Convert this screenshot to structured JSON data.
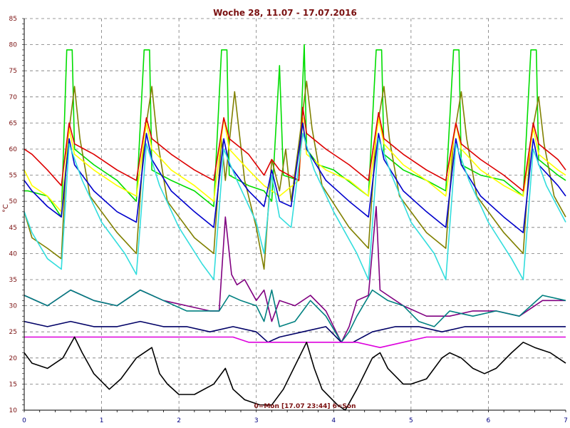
{
  "chart_data": {
    "type": "line",
    "title": "Woche 28, 11.07 - 17.07.2016",
    "ylabel": "°C",
    "footer": "0=Mon [17.07 23:44] 6=Son",
    "xlim": [
      0,
      7
    ],
    "ylim": [
      10,
      85
    ],
    "x_ticks": [
      "0",
      "1",
      "2",
      "3",
      "4",
      "5",
      "6",
      "7"
    ],
    "y_ticks": [
      "10",
      "15",
      "20",
      "25",
      "30",
      "35",
      "40",
      "45",
      "50",
      "55",
      "60",
      "65",
      "70",
      "75",
      "80",
      "85"
    ],
    "grid": true,
    "series": [
      {
        "color": "#00dd00",
        "x": [
          0,
          0.05,
          0.3,
          0.48,
          0.55,
          0.62,
          0.65,
          0.9,
          1.2,
          1.45,
          1.55,
          1.62,
          1.65,
          1.9,
          2.2,
          2.45,
          2.55,
          2.62,
          2.65,
          2.9,
          3.1,
          3.2,
          3.3,
          3.35,
          3.55,
          3.62,
          3.65,
          3.8,
          4.0,
          4.45,
          4.55,
          4.62,
          4.65,
          4.9,
          5.2,
          5.45,
          5.55,
          5.62,
          5.65,
          5.9,
          6.2,
          6.45,
          6.55,
          6.62,
          6.65,
          6.9,
          7.0
        ],
        "y": [
          52,
          52,
          51,
          47,
          79,
          79,
          60,
          57,
          54,
          50,
          79,
          79,
          56,
          54,
          52,
          49,
          79,
          79,
          55,
          53,
          52,
          50,
          76,
          55,
          54,
          80,
          60,
          57,
          56,
          51,
          79,
          79,
          59,
          56,
          54,
          52,
          79,
          79,
          57,
          55,
          54,
          51,
          79,
          79,
          58,
          55,
          54
        ]
      },
      {
        "color": "#808000",
        "x": [
          0,
          0.1,
          0.3,
          0.48,
          0.55,
          0.65,
          0.72,
          0.85,
          1.2,
          1.45,
          1.55,
          1.65,
          1.72,
          1.85,
          2.2,
          2.45,
          2.55,
          2.6,
          2.72,
          2.85,
          3.0,
          3.1,
          3.2,
          3.3,
          3.38,
          3.45,
          3.55,
          3.65,
          3.72,
          3.85,
          4.2,
          4.45,
          4.55,
          4.65,
          4.72,
          4.85,
          5.2,
          5.45,
          5.55,
          5.65,
          5.72,
          5.85,
          6.2,
          6.45,
          6.55,
          6.65,
          6.72,
          6.85,
          7.0
        ],
        "y": [
          48,
          43,
          41,
          39,
          60,
          72,
          62,
          51,
          44,
          40,
          62,
          72,
          62,
          50,
          43,
          40,
          62,
          54,
          71,
          54,
          45,
          37,
          58,
          52,
          60,
          50,
          61,
          73,
          64,
          53,
          45,
          41,
          63,
          72,
          62,
          51,
          44,
          41,
          62,
          71,
          62,
          51,
          44,
          40,
          62,
          70,
          61,
          51,
          47
        ]
      },
      {
        "color": "#ffff00",
        "x": [
          0,
          0.1,
          0.3,
          0.48,
          0.58,
          0.65,
          0.9,
          1.2,
          1.45,
          1.58,
          1.65,
          1.9,
          2.2,
          2.45,
          2.58,
          2.65,
          2.9,
          3.1,
          3.3,
          3.55,
          3.6,
          3.65,
          3.9,
          4.2,
          4.45,
          4.58,
          4.65,
          4.9,
          5.2,
          5.45,
          5.58,
          5.65,
          5.9,
          6.2,
          6.45,
          6.58,
          6.65,
          6.9,
          7.0
        ],
        "y": [
          56,
          53,
          51,
          48,
          64,
          59,
          56,
          53,
          51,
          65,
          60,
          56,
          53,
          50,
          66,
          60,
          56,
          53,
          51,
          54,
          66,
          59,
          56,
          54,
          51,
          66,
          61,
          57,
          54,
          51,
          65,
          60,
          56,
          53,
          51,
          64,
          59,
          56,
          55
        ]
      },
      {
        "color": "#dd0000",
        "x": [
          0,
          0.1,
          0.3,
          0.48,
          0.58,
          0.65,
          0.9,
          1.2,
          1.45,
          1.58,
          1.65,
          1.9,
          2.2,
          2.45,
          2.58,
          2.65,
          2.9,
          3.1,
          3.2,
          3.3,
          3.55,
          3.6,
          3.65,
          3.9,
          4.2,
          4.45,
          4.58,
          4.65,
          4.9,
          5.2,
          5.45,
          5.58,
          5.65,
          5.9,
          6.2,
          6.45,
          6.58,
          6.65,
          6.9,
          7.0
        ],
        "y": [
          60,
          59,
          56,
          53,
          65,
          61,
          59,
          56,
          54,
          66,
          62,
          59,
          56,
          54,
          66,
          62,
          59,
          55,
          58,
          56,
          54,
          68,
          63,
          60,
          57,
          54,
          67,
          62,
          59,
          56,
          54,
          65,
          61,
          58,
          55,
          52,
          65,
          61,
          58,
          56
        ]
      },
      {
        "color": "#0000cc",
        "x": [
          0,
          0.1,
          0.3,
          0.48,
          0.58,
          0.65,
          0.9,
          1.2,
          1.45,
          1.58,
          1.65,
          1.9,
          2.2,
          2.45,
          2.58,
          2.65,
          2.9,
          3.1,
          3.2,
          3.3,
          3.45,
          3.6,
          3.65,
          3.9,
          4.2,
          4.45,
          4.58,
          4.65,
          4.9,
          5.2,
          5.45,
          5.58,
          5.65,
          5.9,
          6.2,
          6.45,
          6.58,
          6.65,
          6.9,
          7.0
        ],
        "y": [
          54,
          52,
          49,
          47,
          62,
          57,
          52,
          48,
          46,
          63,
          58,
          52,
          48,
          45,
          62,
          57,
          52,
          49,
          56,
          50,
          49,
          65,
          60,
          54,
          50,
          47,
          63,
          58,
          52,
          48,
          45,
          62,
          57,
          51,
          47,
          44,
          62,
          57,
          53,
          51
        ]
      },
      {
        "color": "#33dddd",
        "x": [
          0,
          0.1,
          0.3,
          0.48,
          0.58,
          0.75,
          1.0,
          1.3,
          1.45,
          1.58,
          1.75,
          2.0,
          2.3,
          2.45,
          2.58,
          2.75,
          3.0,
          3.1,
          3.2,
          3.3,
          3.45,
          3.6,
          3.75,
          4.0,
          4.3,
          4.45,
          4.58,
          4.75,
          5.0,
          5.3,
          5.45,
          5.58,
          5.75,
          6.0,
          6.3,
          6.45,
          6.58,
          6.75,
          7.0
        ],
        "y": [
          48,
          44,
          39,
          37,
          61,
          54,
          46,
          40,
          36,
          61,
          53,
          45,
          38,
          35,
          60,
          54,
          46,
          40,
          55,
          47,
          45,
          63,
          56,
          48,
          40,
          35,
          62,
          55,
          46,
          40,
          35,
          61,
          54,
          46,
          39,
          35,
          60,
          53,
          46
        ]
      },
      {
        "color": "#800080",
        "x": [
          0,
          0.3,
          0.6,
          0.9,
          1.2,
          1.5,
          1.8,
          2.1,
          2.4,
          2.52,
          2.6,
          2.68,
          2.75,
          2.85,
          3.0,
          3.1,
          3.2,
          3.3,
          3.5,
          3.7,
          3.9,
          4.1,
          4.2,
          4.3,
          4.45,
          4.55,
          4.6,
          4.7,
          4.9,
          5.2,
          5.5,
          5.8,
          6.1,
          6.4,
          6.7,
          7.0
        ],
        "y": [
          32,
          30,
          33,
          31,
          30,
          33,
          31,
          30,
          29,
          29,
          47,
          36,
          34,
          35,
          31,
          33,
          27,
          31,
          30,
          32,
          29,
          23,
          26,
          31,
          32,
          49,
          33,
          32,
          30,
          28,
          28,
          29,
          29,
          28,
          31,
          31
        ]
      },
      {
        "color": "#008080",
        "x": [
          0,
          0.3,
          0.6,
          0.9,
          1.2,
          1.5,
          1.8,
          2.1,
          2.4,
          2.52,
          2.65,
          2.8,
          3.0,
          3.1,
          3.2,
          3.3,
          3.5,
          3.7,
          3.9,
          4.1,
          4.2,
          4.3,
          4.5,
          4.7,
          4.9,
          5.1,
          5.3,
          5.5,
          5.8,
          6.1,
          6.4,
          6.7,
          7.0
        ],
        "y": [
          32,
          30,
          33,
          31,
          30,
          33,
          31,
          29,
          29,
          29,
          32,
          31,
          30,
          27,
          33,
          26,
          27,
          31,
          28,
          23,
          25,
          28,
          33,
          31,
          30,
          27,
          26,
          29,
          28,
          29,
          28,
          32,
          31
        ]
      },
      {
        "color": "#000066",
        "x": [
          0,
          0.3,
          0.6,
          0.9,
          1.2,
          1.5,
          1.8,
          2.1,
          2.4,
          2.7,
          3.0,
          3.15,
          3.3,
          3.6,
          3.9,
          4.1,
          4.25,
          4.5,
          4.8,
          5.1,
          5.4,
          5.7,
          6.0,
          6.3,
          6.6,
          7.0
        ],
        "y": [
          27,
          26,
          27,
          26,
          26,
          27,
          26,
          26,
          25,
          26,
          25,
          23,
          24,
          25,
          26,
          23,
          23,
          25,
          26,
          26,
          25,
          26,
          26,
          26,
          26,
          26
        ]
      },
      {
        "color": "#dd00dd",
        "x": [
          0,
          0.3,
          0.6,
          0.9,
          1.2,
          1.5,
          1.8,
          2.1,
          2.4,
          2.7,
          2.9,
          3.0,
          3.2,
          3.5,
          3.8,
          4.1,
          4.3,
          4.6,
          4.9,
          5.2,
          5.5,
          5.8,
          6.1,
          6.4,
          6.7,
          7.0
        ],
        "y": [
          24,
          24,
          24,
          24,
          24,
          24,
          24,
          24,
          24,
          24,
          23,
          23,
          23,
          23,
          23,
          23,
          23,
          22,
          23,
          24,
          24,
          24,
          24,
          24,
          24,
          24
        ]
      },
      {
        "color": "#000000",
        "x": [
          0,
          0.1,
          0.3,
          0.5,
          0.65,
          0.75,
          0.9,
          1.1,
          1.25,
          1.45,
          1.65,
          1.75,
          1.85,
          2.0,
          2.2,
          2.45,
          2.6,
          2.7,
          2.85,
          3.05,
          3.2,
          3.35,
          3.55,
          3.65,
          3.75,
          3.85,
          4.05,
          4.15,
          4.3,
          4.5,
          4.6,
          4.7,
          4.9,
          5.0,
          5.2,
          5.4,
          5.5,
          5.65,
          5.8,
          5.95,
          6.1,
          6.3,
          6.45,
          6.6,
          6.8,
          7.0
        ],
        "y": [
          21,
          19,
          18,
          20,
          24,
          21,
          17,
          14,
          16,
          20,
          22,
          17,
          15,
          13,
          13,
          15,
          18,
          14,
          12,
          11,
          11,
          14,
          20,
          23,
          18,
          14,
          11,
          10,
          14,
          20,
          21,
          18,
          15,
          15,
          16,
          20,
          21,
          20,
          18,
          17,
          18,
          21,
          23,
          22,
          21,
          19
        ]
      }
    ]
  }
}
